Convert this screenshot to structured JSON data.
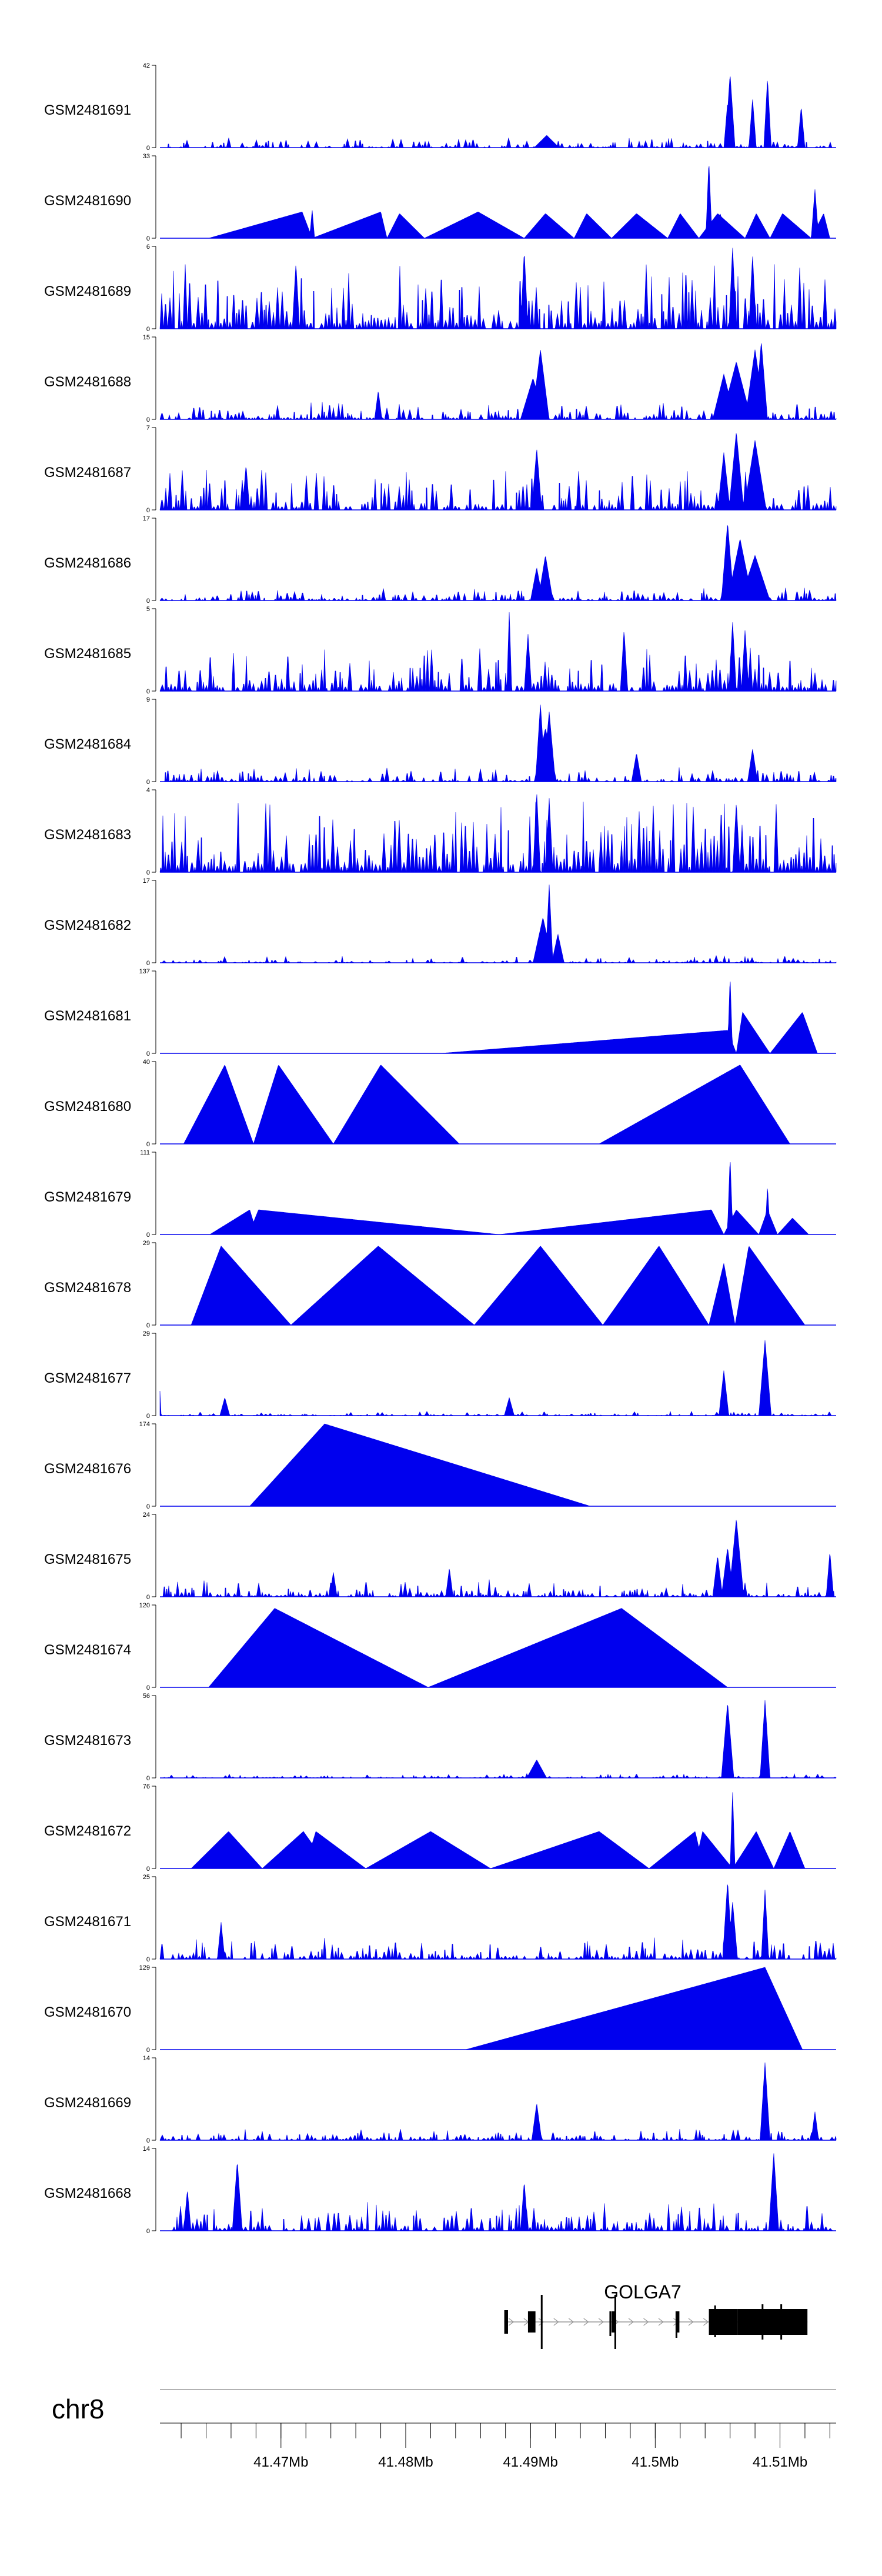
{
  "chart_data": {
    "type": "area",
    "title": "",
    "chromosome": "chr8",
    "region_mb": [
      41.4603,
      41.5145
    ],
    "tracks": [
      {
        "name": "GSM2481691",
        "ymax": 42,
        "ymin": 0,
        "shape": "noise",
        "base": 0.07,
        "dens": 0.65,
        "seed": 1,
        "peaks": [
          [
            41.506,
            0.9,
            0.0004
          ],
          [
            41.5058,
            0.55,
            0.0003
          ],
          [
            41.509,
            0.85,
            0.0003
          ],
          [
            41.5078,
            0.6,
            0.0003
          ],
          [
            41.5117,
            0.5,
            0.0003
          ],
          [
            41.4913,
            0.15,
            0.001
          ]
        ]
      },
      {
        "name": "GSM2481690",
        "ymax": 33,
        "ymin": 0,
        "shape": "tri",
        "pts": [
          [
            41.4642,
            0
          ],
          [
            41.4717,
            0.32
          ],
          [
            41.4725,
            0
          ],
          [
            41.478,
            0.32
          ],
          [
            41.4785,
            0
          ],
          [
            41.4795,
            0.3
          ],
          [
            41.4815,
            0
          ],
          [
            41.4858,
            0.32
          ],
          [
            41.4895,
            0
          ],
          [
            41.4912,
            0.3
          ],
          [
            41.4935,
            0
          ],
          [
            41.4945,
            0.3
          ],
          [
            41.4965,
            0
          ],
          [
            41.4985,
            0.3
          ],
          [
            41.501,
            0
          ],
          [
            41.502,
            0.3
          ],
          [
            41.5035,
            0
          ],
          [
            41.505,
            0.3
          ],
          [
            41.5072,
            0
          ],
          [
            41.5081,
            0.3
          ],
          [
            41.5092,
            0
          ],
          [
            41.5102,
            0.3
          ],
          [
            41.5125,
            0
          ],
          [
            41.5135,
            0.3
          ],
          [
            41.514,
            0
          ]
        ],
        "peaks": [
          [
            41.5043,
            0.95,
            0.00025
          ],
          [
            41.5052,
            0.3,
            0.0006
          ],
          [
            41.5128,
            0.6,
            0.0003
          ],
          [
            41.4725,
            0.35,
            0.0002
          ]
        ]
      },
      {
        "name": "GSM2481689",
        "ymax": 6,
        "ymin": 0,
        "shape": "noise",
        "base": 0.45,
        "dens": 0.9,
        "seed": 3,
        "peaks": [
          [
            41.4895,
            0.95,
            0.0003
          ],
          [
            41.5062,
            1.0,
            0.0003
          ],
          [
            41.5078,
            0.9,
            0.0003
          ],
          [
            41.4712,
            0.8,
            0.0003
          ]
        ]
      },
      {
        "name": "GSM2481688",
        "ymax": 15,
        "ymin": 0,
        "shape": "noise",
        "base": 0.12,
        "dens": 0.75,
        "seed": 4,
        "peaks": [
          [
            41.4908,
            0.85,
            0.0007
          ],
          [
            41.4902,
            0.5,
            0.001
          ],
          [
            41.5065,
            0.7,
            0.0012
          ],
          [
            41.508,
            0.85,
            0.0008
          ],
          [
            41.5085,
            0.95,
            0.0005
          ],
          [
            41.4778,
            0.35,
            0.0003
          ],
          [
            41.5055,
            0.55,
            0.0009
          ]
        ]
      },
      {
        "name": "GSM2481687",
        "ymax": 7,
        "ymin": 0,
        "shape": "noise",
        "base": 0.28,
        "dens": 0.8,
        "seed": 5,
        "peaks": [
          [
            41.5065,
            0.95,
            0.0006
          ],
          [
            41.508,
            0.85,
            0.0009
          ],
          [
            41.5055,
            0.7,
            0.0005
          ],
          [
            41.4905,
            0.75,
            0.0004
          ],
          [
            41.4672,
            0.55,
            0.0003
          ]
        ]
      },
      {
        "name": "GSM2481686",
        "ymax": 17,
        "ymin": 0,
        "shape": "noise",
        "base": 0.09,
        "dens": 0.7,
        "seed": 6,
        "peaks": [
          [
            41.5058,
            0.95,
            0.0005
          ],
          [
            41.5068,
            0.75,
            0.001
          ],
          [
            41.508,
            0.55,
            0.0012
          ],
          [
            41.4912,
            0.55,
            0.0006
          ],
          [
            41.4905,
            0.4,
            0.0005
          ]
        ]
      },
      {
        "name": "GSM2481685",
        "ymax": 5,
        "ymin": 0,
        "shape": "noise",
        "base": 0.32,
        "dens": 0.85,
        "seed": 7,
        "peaks": [
          [
            41.4883,
            0.98,
            0.0002
          ],
          [
            41.4898,
            0.7,
            0.0003
          ],
          [
            41.4975,
            0.75,
            0.0003
          ],
          [
            41.5062,
            0.85,
            0.0003
          ],
          [
            41.5072,
            0.75,
            0.0003
          ]
        ]
      },
      {
        "name": "GSM2481684",
        "ymax": 9,
        "ymin": 0,
        "shape": "noise",
        "base": 0.1,
        "dens": 0.7,
        "seed": 8,
        "peaks": [
          [
            41.4908,
            0.95,
            0.0004
          ],
          [
            41.4915,
            0.85,
            0.0005
          ],
          [
            41.4912,
            0.65,
            0.0009
          ],
          [
            41.4985,
            0.35,
            0.0004
          ],
          [
            41.5078,
            0.4,
            0.0004
          ]
        ]
      },
      {
        "name": "GSM2481683",
        "ymax": 4,
        "ymin": 0,
        "shape": "noise",
        "base": 0.5,
        "dens": 0.9,
        "seed": 9,
        "peaks": [
          [
            41.4905,
            0.98,
            0.0003
          ],
          [
            41.4915,
            0.9,
            0.0003
          ],
          [
            41.5065,
            0.85,
            0.0003
          ]
        ]
      },
      {
        "name": "GSM2481682",
        "ymax": 17,
        "ymin": 0,
        "shape": "noise",
        "base": 0.05,
        "dens": 0.6,
        "seed": 10,
        "peaks": [
          [
            41.4915,
            0.95,
            0.0003
          ],
          [
            41.491,
            0.55,
            0.0008
          ],
          [
            41.4922,
            0.35,
            0.0005
          ]
        ]
      },
      {
        "name": "GSM2481681",
        "ymax": 137,
        "ymin": 0,
        "shape": "tri",
        "pts": [
          [
            41.4828,
            0
          ],
          [
            41.5058,
            0.28
          ],
          [
            41.5065,
            0
          ],
          [
            41.507,
            0.5
          ],
          [
            41.5092,
            0
          ],
          [
            41.5118,
            0.5
          ],
          [
            41.513,
            0
          ]
        ],
        "peaks": [
          [
            41.506,
            0.95,
            0.0002
          ]
        ]
      },
      {
        "name": "GSM2481680",
        "ymax": 40,
        "ymin": 0,
        "shape": "tri",
        "pts": [
          [
            41.4622,
            0
          ],
          [
            41.4655,
            0.96
          ],
          [
            41.4678,
            0
          ],
          [
            41.4698,
            0.96
          ],
          [
            41.4742,
            0
          ],
          [
            41.478,
            0.96
          ],
          [
            41.4843,
            0
          ],
          [
            41.4878,
            0
          ],
          [
            41.4932,
            0
          ],
          [
            41.4955,
            0
          ],
          [
            41.5068,
            0.96
          ],
          [
            41.5108,
            0
          ]
        ],
        "peaks": []
      },
      {
        "name": "GSM2481679",
        "ymax": 111,
        "ymin": 0,
        "shape": "tri",
        "pts": [
          [
            41.4643,
            0
          ],
          [
            41.4675,
            0.3
          ],
          [
            41.4678,
            0.15
          ],
          [
            41.4682,
            0.3
          ],
          [
            41.4875,
            0
          ],
          [
            41.5045,
            0.3
          ],
          [
            41.5055,
            0
          ],
          [
            41.5065,
            0.3
          ],
          [
            41.5083,
            0
          ],
          [
            41.509,
            0.3
          ],
          [
            41.5098,
            0
          ],
          [
            41.511,
            0.2
          ],
          [
            41.5123,
            0
          ]
        ],
        "peaks": [
          [
            41.506,
            0.95,
            0.00022
          ],
          [
            41.509,
            0.6,
            0.0002
          ]
        ]
      },
      {
        "name": "GSM2481678",
        "ymax": 29,
        "ymin": 0,
        "shape": "tri",
        "pts": [
          [
            41.4628,
            0
          ],
          [
            41.4652,
            0.96
          ],
          [
            41.4708,
            0
          ],
          [
            41.4778,
            0.96
          ],
          [
            41.4855,
            0
          ],
          [
            41.4908,
            0.96
          ],
          [
            41.4958,
            0
          ],
          [
            41.5003,
            0.96
          ],
          [
            41.5043,
            0
          ],
          [
            41.5055,
            0.75
          ],
          [
            41.5064,
            0
          ],
          [
            41.5075,
            0.96
          ],
          [
            41.512,
            0
          ]
        ],
        "peaks": []
      },
      {
        "name": "GSM2481677",
        "ymax": 29,
        "ymin": 0,
        "shape": "noise",
        "base": 0.03,
        "dens": 0.6,
        "seed": 13,
        "peaks": [
          [
            41.5088,
            0.92,
            0.0005
          ],
          [
            41.5055,
            0.55,
            0.0004
          ],
          [
            41.4602,
            0.6,
            0.0002
          ],
          [
            41.4655,
            0.22,
            0.0004
          ],
          [
            41.4883,
            0.22,
            0.0004
          ]
        ]
      },
      {
        "name": "GSM2481676",
        "ymax": 174,
        "ymin": 0,
        "shape": "tri",
        "pts": [
          [
            41.4675,
            0
          ],
          [
            41.4735,
            1.0
          ],
          [
            41.4948,
            0
          ]
        ],
        "peaks": []
      },
      {
        "name": "GSM2481675",
        "ymax": 24,
        "ymin": 0,
        "shape": "noise",
        "base": 0.12,
        "dens": 0.7,
        "seed": 15,
        "peaks": [
          [
            41.5065,
            0.95,
            0.0006
          ],
          [
            41.5058,
            0.6,
            0.0005
          ],
          [
            41.505,
            0.5,
            0.0004
          ],
          [
            41.514,
            0.55,
            0.0003
          ],
          [
            41.4835,
            0.35,
            0.0003
          ],
          [
            41.4742,
            0.3,
            0.0003
          ]
        ]
      },
      {
        "name": "GSM2481674",
        "ymax": 120,
        "ymin": 0,
        "shape": "tri",
        "pts": [
          [
            41.4642,
            0
          ],
          [
            41.4695,
            0.96
          ],
          [
            41.4818,
            0
          ],
          [
            41.4973,
            0.96
          ],
          [
            41.5058,
            0
          ]
        ],
        "peaks": []
      },
      {
        "name": "GSM2481673",
        "ymax": 56,
        "ymin": 0,
        "shape": "noise",
        "base": 0.03,
        "dens": 0.6,
        "seed": 17,
        "peaks": [
          [
            41.5058,
            0.92,
            0.0005
          ],
          [
            41.5088,
            0.95,
            0.0004
          ],
          [
            41.4905,
            0.22,
            0.0008
          ]
        ]
      },
      {
        "name": "GSM2481672",
        "ymax": 76,
        "ymin": 0,
        "shape": "tri",
        "pts": [
          [
            41.4628,
            0
          ],
          [
            41.4658,
            0.45
          ],
          [
            41.4685,
            0
          ],
          [
            41.4718,
            0.45
          ],
          [
            41.4725,
            0.3
          ],
          [
            41.4728,
            0.45
          ],
          [
            41.4768,
            0
          ],
          [
            41.482,
            0.45
          ],
          [
            41.4868,
            0
          ],
          [
            41.4955,
            0.45
          ],
          [
            41.4995,
            0
          ],
          [
            41.5032,
            0.45
          ],
          [
            41.5035,
            0.25
          ],
          [
            41.5038,
            0.45
          ],
          [
            41.5062,
            0
          ],
          [
            41.5081,
            0.45
          ],
          [
            41.5095,
            0
          ],
          [
            41.5108,
            0.45
          ],
          [
            41.512,
            0
          ]
        ],
        "peaks": [
          [
            41.5062,
            0.95,
            0.0002
          ]
        ]
      },
      {
        "name": "GSM2481671",
        "ymax": 25,
        "ymin": 0,
        "shape": "noise",
        "base": 0.15,
        "dens": 0.75,
        "seed": 19,
        "peaks": [
          [
            41.5058,
            0.95,
            0.0004
          ],
          [
            41.5062,
            0.7,
            0.0004
          ],
          [
            41.5088,
            0.85,
            0.0003
          ],
          [
            41.4652,
            0.45,
            0.0003
          ]
        ]
      },
      {
        "name": "GSM2481670",
        "ymax": 129,
        "ymin": 0,
        "shape": "tri",
        "pts": [
          [
            41.4848,
            0
          ],
          [
            41.5088,
            1.0
          ],
          [
            41.5118,
            0
          ]
        ],
        "peaks": []
      },
      {
        "name": "GSM2481669",
        "ymax": 14,
        "ymin": 0,
        "shape": "noise",
        "base": 0.08,
        "dens": 0.7,
        "seed": 21,
        "peaks": [
          [
            41.5088,
            0.95,
            0.0004
          ],
          [
            41.4905,
            0.45,
            0.0004
          ],
          [
            41.5128,
            0.35,
            0.0003
          ]
        ]
      },
      {
        "name": "GSM2481668",
        "ymax": 14,
        "ymin": 0,
        "shape": "noise",
        "base": 0.2,
        "dens": 0.75,
        "seed": 22,
        "peaks": [
          [
            41.4665,
            0.85,
            0.0004
          ],
          [
            41.5095,
            0.95,
            0.0004
          ],
          [
            41.4625,
            0.5,
            0.0003
          ],
          [
            41.4895,
            0.6,
            0.0003
          ]
        ]
      }
    ],
    "gene": {
      "name": "GOLGA7",
      "strand": "+",
      "start_mb": 41.4879,
      "end_mb": 41.5122,
      "exons": [
        [
          41.4879,
          41.4882
        ],
        [
          41.4898,
          41.4904
        ],
        [
          41.4965,
          41.4968
        ],
        [
          41.5017,
          41.5019
        ],
        [
          41.5043,
          41.5066
        ],
        [
          41.5066,
          41.5122
        ]
      ],
      "thick_start_mb": 41.5043
    },
    "axis": {
      "label": "chr8",
      "minor_tick_mb": 0.002,
      "major_ticks": [
        {
          "value": 41.47,
          "label": "41.47Mb"
        },
        {
          "value": 41.48,
          "label": "41.48Mb"
        },
        {
          "value": 41.49,
          "label": "41.49Mb"
        },
        {
          "value": 41.5,
          "label": "41.5Mb"
        },
        {
          "value": 41.51,
          "label": "41.51Mb"
        }
      ]
    }
  },
  "colors": {
    "signal": "#0000ee",
    "axis": "#000000",
    "gene": "#000000",
    "intron": "#999999"
  }
}
